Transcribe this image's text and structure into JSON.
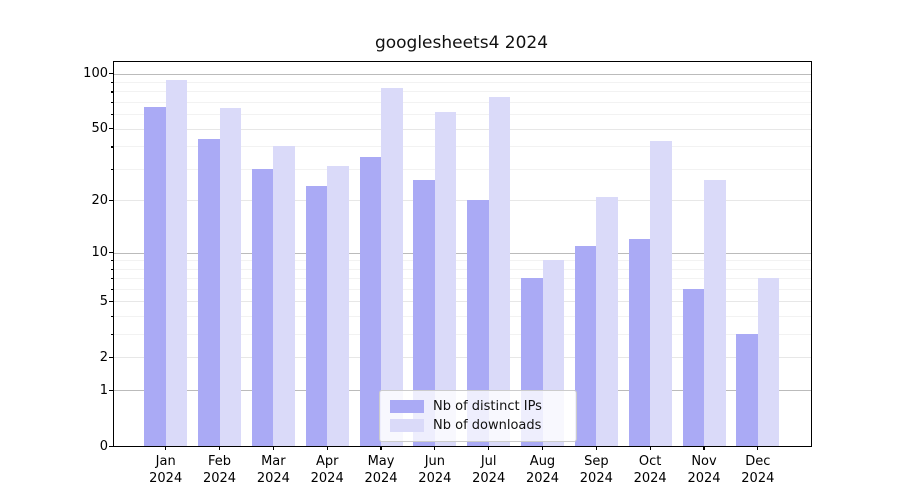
{
  "title": "googlesheets4 2024",
  "chart_data": {
    "type": "bar",
    "title": "googlesheets4 2024",
    "categories": [
      "Jan",
      "Feb",
      "Mar",
      "Apr",
      "May",
      "Jun",
      "Jul",
      "Aug",
      "Sep",
      "Oct",
      "Nov",
      "Dec"
    ],
    "x_year": "2024",
    "series": [
      {
        "name": "Nb of distinct IPs",
        "color": "#aaaaf5",
        "values": [
          66,
          44,
          30,
          24,
          35,
          26,
          20,
          7,
          11,
          12,
          6,
          3
        ]
      },
      {
        "name": "Nb of downloads",
        "color": "#dadaf9",
        "values": [
          92,
          65,
          40,
          31,
          83,
          62,
          75,
          9,
          21,
          43,
          26,
          7
        ]
      }
    ],
    "xlabel": "",
    "ylabel": "",
    "y_scale": "log10(1+x)",
    "y_ticks": [
      0,
      1,
      2,
      5,
      10,
      20,
      50,
      100
    ],
    "y_minor_ticks": [
      3,
      4,
      6,
      7,
      8,
      9,
      30,
      40,
      60,
      70,
      80,
      90
    ],
    "ylim": [
      0,
      116
    ],
    "grid": "horizontal",
    "legend_position": "lower center",
    "colors": {
      "major_gridline": "#bbbbbb",
      "labeled_gridline": "#e7e7e7",
      "minor_gridline": "#f2f2f2",
      "spine": "#000000"
    }
  }
}
